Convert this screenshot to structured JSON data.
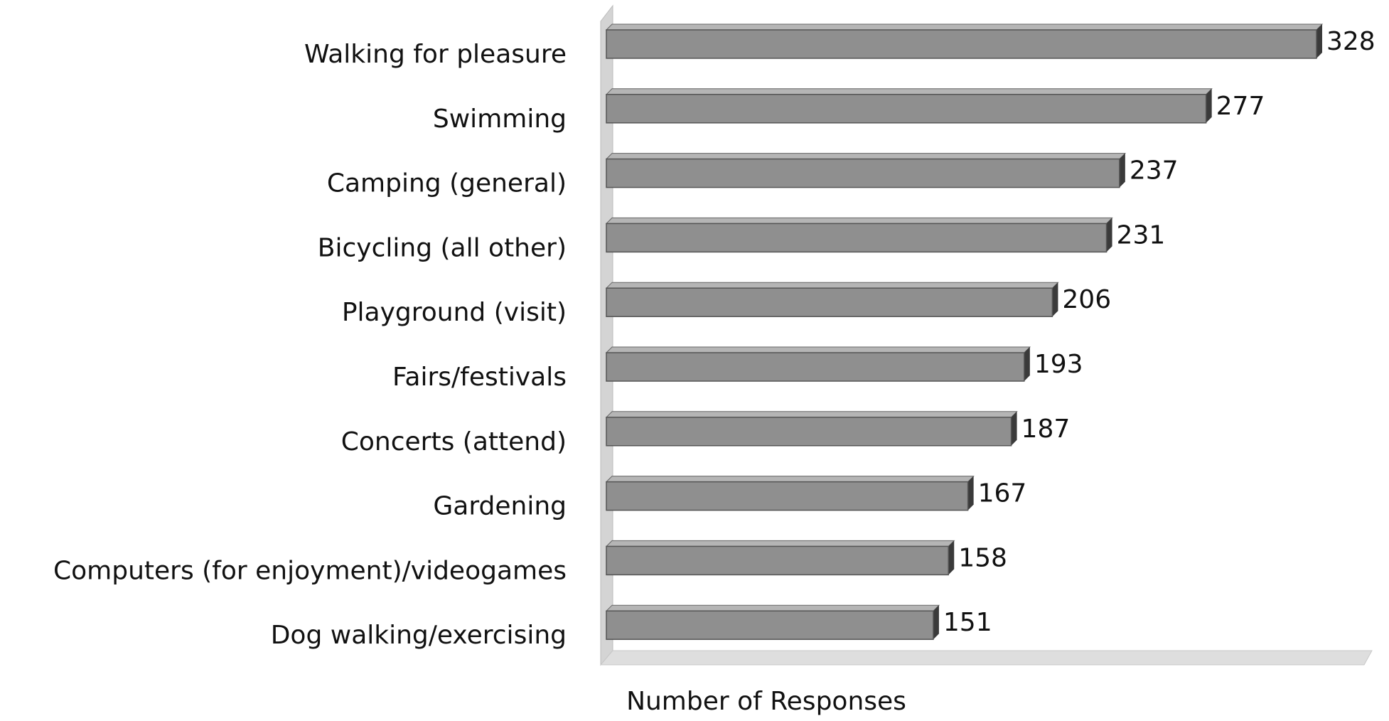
{
  "chart_data": {
    "type": "bar",
    "orientation": "horizontal",
    "x_label": "Number of Responses",
    "categories": [
      "Walking for pleasure",
      "Swimming",
      "Camping (general)",
      "Bicycling (all other)",
      "Playground (visit)",
      "Fairs/festivals",
      "Concerts (attend)",
      "Gardening",
      "Computers (for enjoyment)/videogames",
      "Dog walking/exercising"
    ],
    "values": [
      328,
      277,
      237,
      231,
      206,
      193,
      187,
      167,
      158,
      151
    ],
    "color": "#8f8f8f",
    "xlim": [
      0,
      350
    ]
  }
}
